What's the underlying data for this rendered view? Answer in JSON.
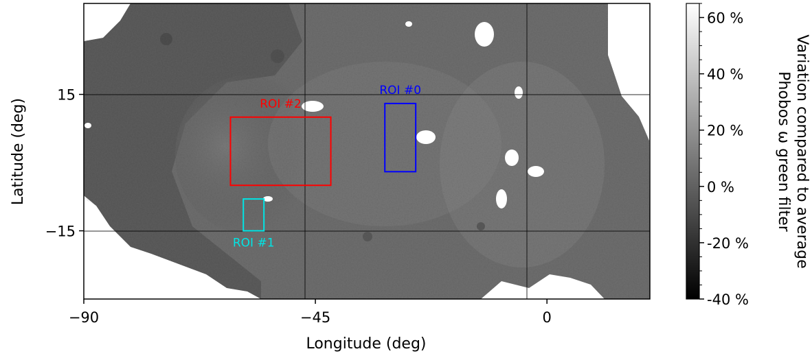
{
  "chart_data": {
    "type": "heatmap",
    "title": "",
    "xlabel": "Longitude (deg)",
    "ylabel": "Latitude (deg)",
    "xlim": [
      -90,
      20
    ],
    "ylim": [
      -30,
      35
    ],
    "xticks": [
      -90,
      -45,
      0
    ],
    "xtick_labels": [
      "−90",
      "−45",
      "0"
    ],
    "yticks": [
      15,
      -15
    ],
    "ytick_labels": [
      "15",
      "−15"
    ],
    "grid": true,
    "colorbar": {
      "label_line1": "Variation compared to average",
      "label_line2": "Phobos ω green filter",
      "range": [
        -40,
        65
      ],
      "ticks": [
        60,
        40,
        20,
        0,
        -20,
        -40
      ],
      "tick_labels": [
        "60 %",
        "40 %",
        "20 %",
        "0 %",
        "-20 %",
        "-40 %"
      ],
      "colormap": "gray"
    },
    "regions": [
      {
        "label": "ROI #0",
        "color": "#0000ff",
        "lon": [
          -31.5,
          -25.5
        ],
        "lat": [
          -2,
          13
        ]
      },
      {
        "label": "ROI #1",
        "color": "#00e5e5",
        "lon": [
          -59,
          -55
        ],
        "lat": [
          -15,
          -8
        ]
      },
      {
        "label": "ROI #2",
        "color": "#ff0000",
        "lon": [
          -61.5,
          -42
        ],
        "lat": [
          -5,
          10
        ]
      }
    ]
  }
}
